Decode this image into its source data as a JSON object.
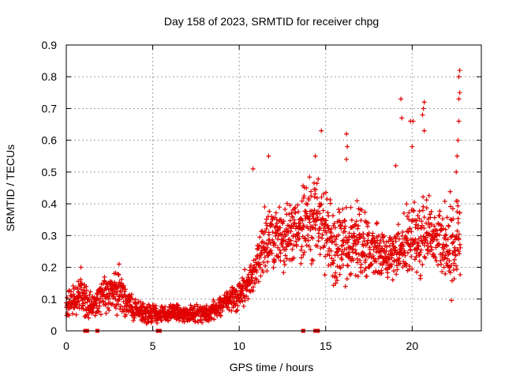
{
  "chart_data": {
    "type": "scatter",
    "title": "Day 158 of 2023, SRMTID for receiver chpg",
    "xlabel": "GPS time / hours",
    "ylabel": "SRMTID / TECUs",
    "xlim": [
      0,
      24
    ],
    "ylim": [
      0,
      0.9
    ],
    "x_ticks": [
      0,
      5,
      10,
      15,
      20
    ],
    "x_tick_labels": [
      "0",
      "5",
      "10",
      "15",
      "20"
    ],
    "y_ticks": [
      0,
      0.1,
      0.2,
      0.3,
      0.4,
      0.5,
      0.6,
      0.7,
      0.8,
      0.9
    ],
    "y_tick_labels": [
      "0",
      "0.1",
      "0.2",
      "0.3",
      "0.4",
      "0.5",
      "0.6",
      "0.7",
      "0.8",
      "0.9"
    ],
    "grid": true,
    "marker": "+",
    "color": "#e00000",
    "trend": [
      {
        "x": 0.0,
        "lo": 0.03,
        "hi": 0.12
      },
      {
        "x": 0.8,
        "lo": 0.04,
        "hi": 0.2
      },
      {
        "x": 1.5,
        "lo": 0.03,
        "hi": 0.12
      },
      {
        "x": 2.2,
        "lo": 0.05,
        "hi": 0.18
      },
      {
        "x": 3.0,
        "lo": 0.04,
        "hi": 0.2
      },
      {
        "x": 4.0,
        "lo": 0.02,
        "hi": 0.1
      },
      {
        "x": 5.0,
        "lo": 0.02,
        "hi": 0.09
      },
      {
        "x": 6.0,
        "lo": 0.02,
        "hi": 0.09
      },
      {
        "x": 7.0,
        "lo": 0.02,
        "hi": 0.09
      },
      {
        "x": 8.0,
        "lo": 0.02,
        "hi": 0.09
      },
      {
        "x": 9.0,
        "lo": 0.04,
        "hi": 0.12
      },
      {
        "x": 10.0,
        "lo": 0.06,
        "hi": 0.16
      },
      {
        "x": 10.8,
        "lo": 0.1,
        "hi": 0.25
      },
      {
        "x": 11.5,
        "lo": 0.15,
        "hi": 0.42
      },
      {
        "x": 12.5,
        "lo": 0.17,
        "hi": 0.4
      },
      {
        "x": 13.5,
        "lo": 0.2,
        "hi": 0.45
      },
      {
        "x": 14.5,
        "lo": 0.2,
        "hi": 0.52
      },
      {
        "x": 15.5,
        "lo": 0.12,
        "hi": 0.4
      },
      {
        "x": 16.5,
        "lo": 0.12,
        "hi": 0.45
      },
      {
        "x": 17.5,
        "lo": 0.15,
        "hi": 0.38
      },
      {
        "x": 18.5,
        "lo": 0.15,
        "hi": 0.3
      },
      {
        "x": 19.5,
        "lo": 0.15,
        "hi": 0.4
      },
      {
        "x": 20.5,
        "lo": 0.15,
        "hi": 0.45
      },
      {
        "x": 21.5,
        "lo": 0.2,
        "hi": 0.4
      },
      {
        "x": 22.3,
        "lo": 0.08,
        "hi": 0.45
      },
      {
        "x": 22.8,
        "lo": 0.1,
        "hi": 0.45
      }
    ],
    "outliers": [
      [
        0.85,
        0.2
      ],
      [
        3.05,
        0.21
      ],
      [
        10.8,
        0.51
      ],
      [
        11.7,
        0.55
      ],
      [
        14.75,
        0.63
      ],
      [
        16.2,
        0.62
      ],
      [
        16.25,
        0.58
      ],
      [
        16.2,
        0.54
      ],
      [
        19.35,
        0.73
      ],
      [
        19.4,
        0.67
      ],
      [
        19.9,
        0.66
      ],
      [
        20.05,
        0.66
      ],
      [
        20.7,
        0.72
      ],
      [
        20.65,
        0.7
      ],
      [
        20.6,
        0.68
      ],
      [
        20.7,
        0.63
      ],
      [
        22.75,
        0.82
      ],
      [
        22.7,
        0.8
      ],
      [
        22.75,
        0.75
      ],
      [
        22.7,
        0.73
      ],
      [
        22.7,
        0.66
      ],
      [
        22.65,
        0.6
      ],
      [
        22.6,
        0.55
      ],
      [
        22.55,
        0.5
      ],
      [
        19.05,
        0.52
      ],
      [
        20.0,
        0.58
      ],
      [
        14.4,
        0.55
      ]
    ],
    "zero_points": [
      1.1,
      1.2,
      1.8,
      5.3,
      5.4,
      13.7,
      14.4,
      14.55
    ]
  }
}
